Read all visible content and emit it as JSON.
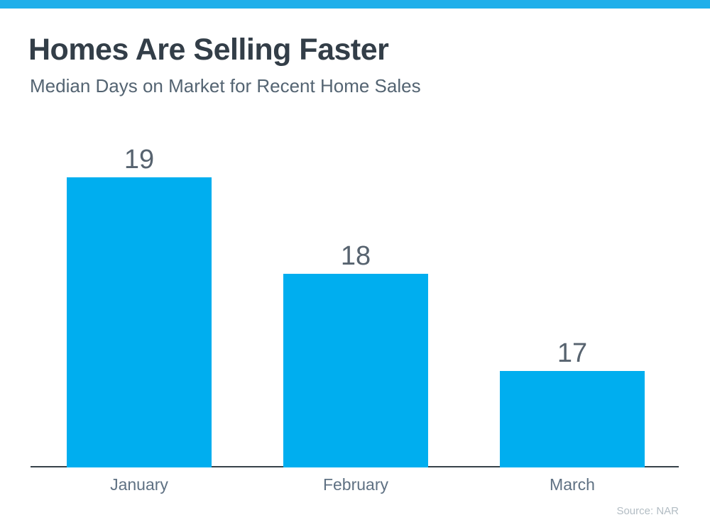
{
  "header": {
    "title": "Homes Are Selling Faster",
    "subtitle": "Median Days on Market for Recent Home Sales"
  },
  "footer": {
    "source": "Source: NAR"
  },
  "colors": {
    "accent_bar": "#1fafea",
    "bar_fill": "#00aeef",
    "title_text": "#333e48",
    "subtitle_text": "#546472",
    "axis_line": "#37424a",
    "source_text": "#b3bdc4"
  },
  "chart_data": {
    "type": "bar",
    "categories": [
      "January",
      "February",
      "March"
    ],
    "values": [
      19,
      18,
      17
    ],
    "data_labels": [
      "19",
      "18",
      "17"
    ],
    "title": "Homes Are Selling Faster",
    "subtitle": "Median Days on Market for Recent Home Sales",
    "xlabel": "",
    "ylabel": "",
    "ylim": [
      16,
      19
    ],
    "grid": false,
    "legend": "none",
    "bar_color": "#00aeef",
    "source": "Source: NAR"
  }
}
